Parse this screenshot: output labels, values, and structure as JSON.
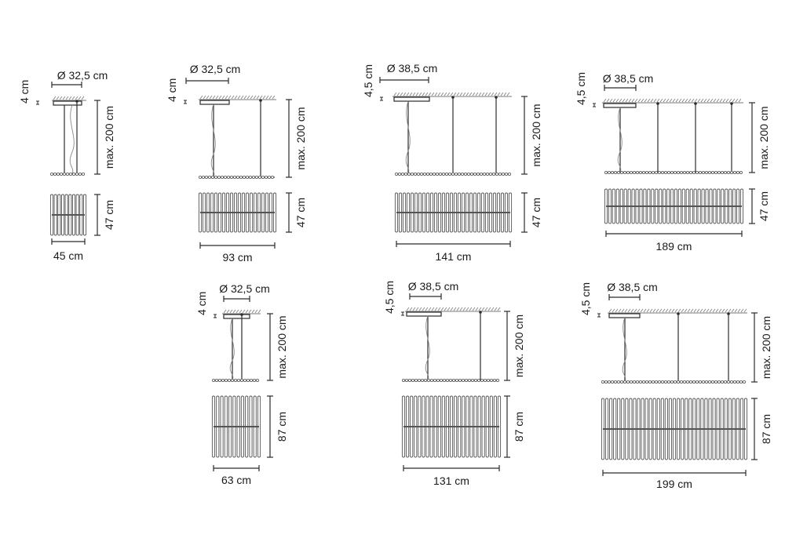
{
  "colors": {
    "line": "#2a2a2a",
    "cable": "#8a8a8a",
    "rod": "#555555",
    "hatch": "#777777"
  },
  "lamps": [
    {
      "diameter": "Ø 32,5 cm",
      "canopy_height": "4 cm",
      "max_drop": "max. 200 cm",
      "height": "47 cm",
      "width": "45 cm"
    },
    {
      "diameter": "Ø 32,5 cm",
      "canopy_height": "4 cm",
      "max_drop": "max. 200 cm",
      "height": "47 cm",
      "width": "93 cm"
    },
    {
      "diameter": "Ø 38,5 cm",
      "canopy_height": "4,5 cm",
      "max_drop": "max. 200 cm",
      "height": "47 cm",
      "width": "141 cm"
    },
    {
      "diameter": "Ø 38,5 cm",
      "canopy_height": "4,5 cm",
      "max_drop": "max. 200 cm",
      "height": "47 cm",
      "width": "189 cm"
    },
    {
      "diameter": "Ø 32,5 cm",
      "canopy_height": "4 cm",
      "max_drop": "max. 200 cm",
      "height": "87 cm",
      "width": "63 cm"
    },
    {
      "diameter": "Ø 38,5 cm",
      "canopy_height": "4,5 cm",
      "max_drop": "max. 200 cm",
      "height": "87 cm",
      "width": "131 cm"
    },
    {
      "diameter": "Ø 38,5 cm",
      "canopy_height": "4,5 cm",
      "max_drop": "max. 200 cm",
      "height": "87 cm",
      "width": "199 cm"
    }
  ]
}
